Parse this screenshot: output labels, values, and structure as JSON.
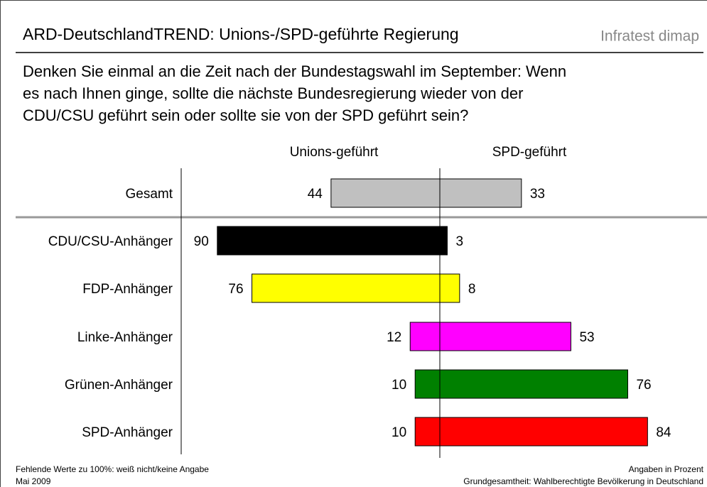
{
  "chart_data": {
    "type": "diverging-bar",
    "title": "ARD-DeutschlandTREND: Unions-/SPD-geführte Regierung",
    "brand": "Infratest dimap",
    "subtitle_lines": [
      "Denken Sie einmal an die Zeit nach der Bundestagswahl im September: Wenn",
      "es nach Ihnen ginge, sollte die nächste Bundesregierung wieder von der",
      "CDU/CSU geführt sein oder sollte sie von der SPD geführt sein?"
    ],
    "categories": [
      "Gesamt",
      "CDU/CSU-Anhänger",
      "FDP-Anhänger",
      "Linke-Anhänger",
      "Grünen-Anhänger",
      "SPD-Anhänger"
    ],
    "colors": [
      "#c0c0c0",
      "#000000",
      "#ffff00",
      "#ff00ff",
      "#008000",
      "#ff0000"
    ],
    "series": [
      {
        "name": "Unions-geführt",
        "side": "left",
        "values": [
          44,
          90,
          76,
          12,
          10,
          10
        ]
      },
      {
        "name": "SPD-geführt",
        "side": "right",
        "values": [
          33,
          3,
          8,
          53,
          76,
          84
        ]
      }
    ],
    "footnotes_left": [
      "Fehlende Werte zu 100%: weiß nicht/keine Angabe",
      "Mai 2009"
    ],
    "footnotes_right": [
      "Angaben in Prozent",
      "Grundgesamtheit: Wahlberechtigte Bevölkerung in Deutschland"
    ]
  }
}
